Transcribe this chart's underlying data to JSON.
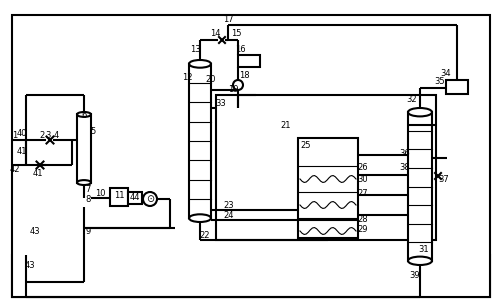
{
  "bg": "#ffffff",
  "lc": "#000000",
  "lw": 1.5,
  "tlw": 0.8,
  "fw": 5.04,
  "fh": 3.04,
  "dpi": 100
}
